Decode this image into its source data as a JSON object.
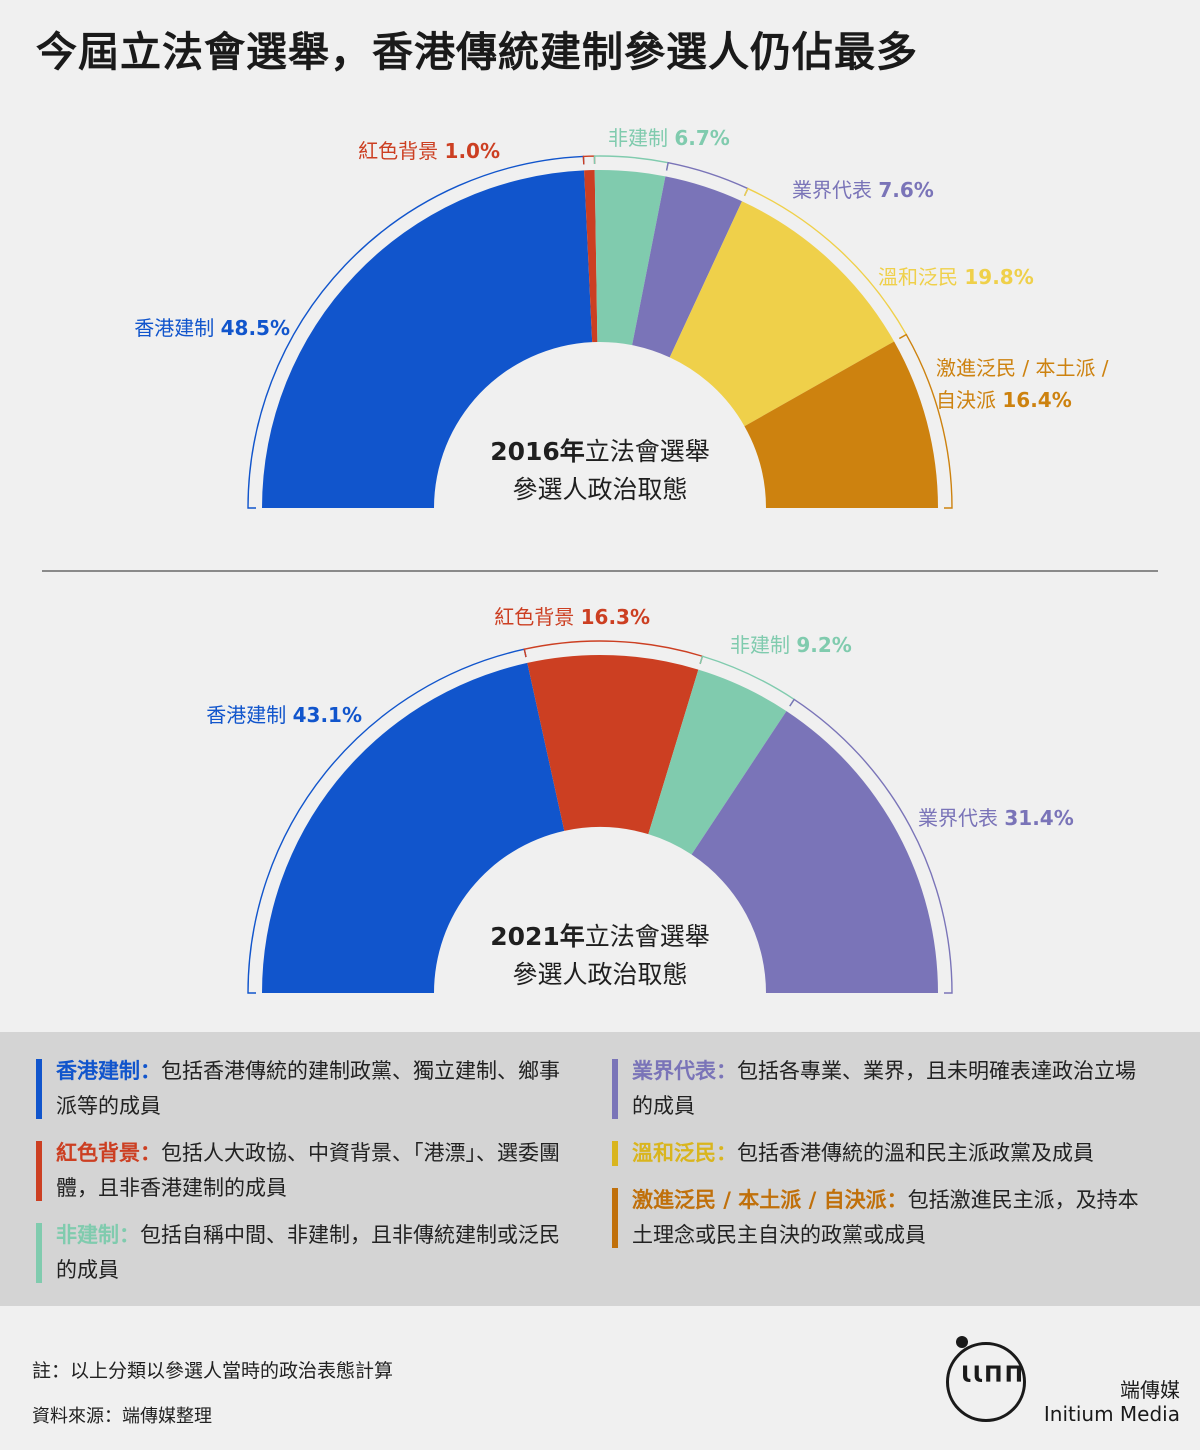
{
  "title": "今屆立法會選舉，香港傳統建制參選人仍佔最多",
  "chart_data": [
    {
      "type": "pie",
      "chart_id": "2016",
      "center_year": "2016年",
      "center_line1_rest": "立法會選舉",
      "center_line2": "參選人政治取態",
      "series": [
        {
          "name": "香港建制",
          "value": 48.5,
          "label": "48.5%",
          "color": "#1155cc"
        },
        {
          "name": "紅色背景",
          "value": 1.0,
          "label": "1.0%",
          "color": "#cc3f22"
        },
        {
          "name": "非建制",
          "value": 6.7,
          "label": "6.7%",
          "color": "#80cbae"
        },
        {
          "name": "業界代表",
          "value": 7.6,
          "label": "7.6%",
          "color": "#7a74b8"
        },
        {
          "name": "溫和泛民",
          "value": 19.8,
          "label": "19.8%",
          "color": "#efd04a"
        },
        {
          "name": "激進泛民 / 本土派 /",
          "name_line2": "自決派",
          "value": 16.4,
          "label": "16.4%",
          "color": "#cd820f"
        }
      ]
    },
    {
      "type": "pie",
      "chart_id": "2021",
      "center_year": "2021年",
      "center_line1_rest": "立法會選舉",
      "center_line2": "參選人政治取態",
      "series": [
        {
          "name": "香港建制",
          "value": 43.1,
          "label": "43.1%",
          "color": "#1155cc"
        },
        {
          "name": "紅色背景",
          "value": 16.3,
          "label": "16.3%",
          "color": "#cc3f22"
        },
        {
          "name": "非建制",
          "value": 9.2,
          "label": "9.2%",
          "color": "#80cbae"
        },
        {
          "name": "業界代表",
          "value": 31.4,
          "label": "31.4%",
          "color": "#7a74b8"
        }
      ]
    }
  ],
  "legend": {
    "left": [
      {
        "term": "香港建制：",
        "desc": "包括香港傳統的建制政黨、獨立建制、鄉事派等的成員",
        "color": "#1155cc"
      },
      {
        "term": "紅色背景：",
        "desc": "包括人大政協、中資背景、「港漂」、選委團體，且非香港建制的成員",
        "color": "#cc3f22"
      },
      {
        "term": "非建制：",
        "desc": "包括自稱中間、非建制，且非傳統建制或泛民的成員",
        "color": "#80cbae"
      }
    ],
    "right": [
      {
        "term": "業界代表：",
        "desc": "包括各專業、業界，且未明確表達政治立場的成員",
        "color": "#7a74b8"
      },
      {
        "term": "溫和泛民：",
        "desc": "包括香港傳統的溫和民主派政黨及成員",
        "color": "#d9b51e"
      },
      {
        "term": "激進泛民 / 本土派 / 自決派：",
        "desc": "包括激進民主派，及持本土理念或民主自決的政黨或成員",
        "color": "#c0700b"
      }
    ]
  },
  "footer": {
    "note": "註：以上分類以參選人當時的政治表態計算",
    "source": "資料來源：端傳媒整理",
    "logo_mark": "ƖƖΠΠ",
    "brand_cn": "端傳媒",
    "brand_en": "Initium Media"
  }
}
